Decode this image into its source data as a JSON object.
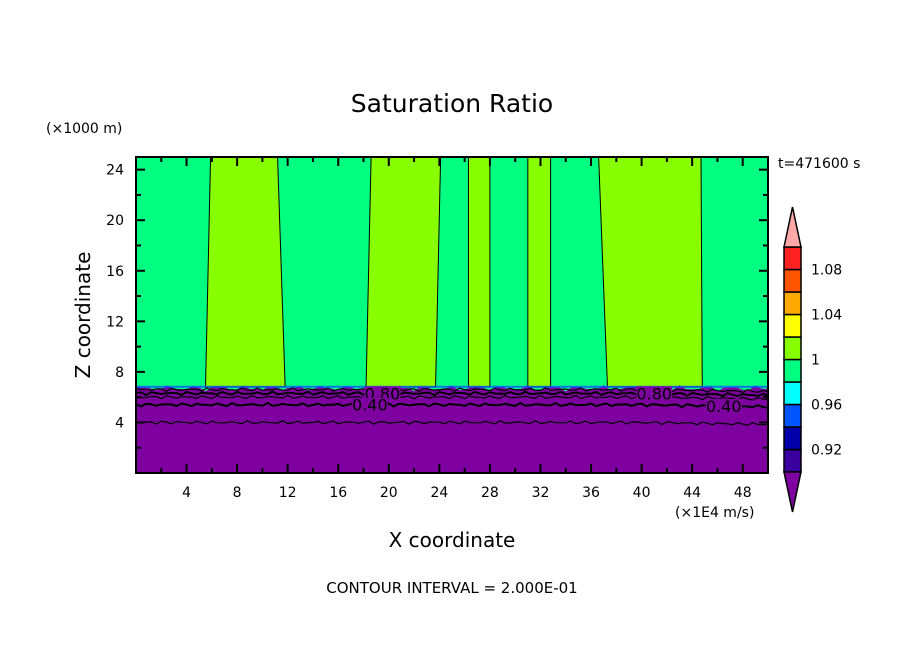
{
  "chart_data": {
    "type": "heatmap",
    "title": "Saturation Ratio",
    "xlabel": "X coordinate",
    "ylabel": "Z coordinate",
    "x_unit": "(×1E4 m/s)",
    "y_unit": "(×1000 m)",
    "time_label": "t=471600 s",
    "footer": "CONTOUR INTERVAL = 2.000E-01",
    "xlim": [
      0,
      50
    ],
    "ylim": [
      0,
      25
    ],
    "x_ticks": [
      4,
      8,
      12,
      16,
      20,
      24,
      28,
      32,
      36,
      40,
      44,
      48
    ],
    "x_tick_labels": [
      "4",
      "8",
      "12",
      "16",
      "20",
      "24",
      "28",
      "32",
      "36",
      "40",
      "44",
      "48"
    ],
    "y_ticks": [
      4,
      8,
      12,
      16,
      20,
      24
    ],
    "y_tick_labels": [
      "4",
      "8",
      "12",
      "16",
      "20",
      "24"
    ],
    "colorbar": {
      "levels": [
        0.9,
        0.92,
        0.94,
        0.96,
        0.98,
        1.0,
        1.02,
        1.04,
        1.06,
        1.08,
        1.1
      ],
      "labels": [
        "0.92",
        "0.96",
        "1",
        "1.04",
        "1.08"
      ],
      "label_values": [
        0.92,
        0.96,
        1.0,
        1.04,
        1.08
      ],
      "colors": [
        "#3a00a0",
        "#0000aa",
        "#0055ff",
        "#00ffff",
        "#00ff80",
        "#88ff00",
        "#ffff00",
        "#ffaa00",
        "#ff5500",
        "#ff2222"
      ],
      "under_color": "#7f00a0",
      "over_color": "#ffa8a8",
      "extend": "both"
    },
    "background_value_color": "#00ff80",
    "subsaturated_layer": {
      "top_z": 6.7,
      "color": "#7f00a0"
    },
    "supersaturated_bands": [
      {
        "x_bottom": [
          5.5,
          11.8
        ],
        "x_top": [
          5.9,
          11.2
        ],
        "z_range": [
          6.8,
          25
        ]
      },
      {
        "x_bottom": [
          18.2,
          23.7
        ],
        "x_top": [
          18.6,
          24.1
        ],
        "z_range": [
          6.8,
          25
        ]
      },
      {
        "x_bottom": [
          26.3,
          28.0
        ],
        "x_top": [
          26.3,
          28.0
        ],
        "z_range": [
          6.8,
          25
        ]
      },
      {
        "x_bottom": [
          31.0,
          32.8
        ],
        "x_top": [
          31.0,
          32.8
        ],
        "z_range": [
          6.8,
          25
        ]
      },
      {
        "x_bottom": [
          37.3,
          44.8
        ],
        "x_top": [
          36.6,
          44.7
        ],
        "z_range": [
          6.8,
          25
        ]
      }
    ],
    "contour_lines": [
      {
        "z": 6.6
      },
      {
        "z": 6.3,
        "label": "0.80"
      },
      {
        "z": 6.0
      },
      {
        "z": 5.4,
        "label": "0.40"
      },
      {
        "z": 4.0
      }
    ],
    "contour_label_positions": [
      {
        "label": "0.80",
        "x": 19.5,
        "z": 6.3
      },
      {
        "label": "0.80",
        "x": 41.0,
        "z": 6.3
      },
      {
        "label": "0.40",
        "x": 18.5,
        "z": 5.4
      },
      {
        "label": "0.40",
        "x": 46.5,
        "z": 5.3
      }
    ]
  }
}
